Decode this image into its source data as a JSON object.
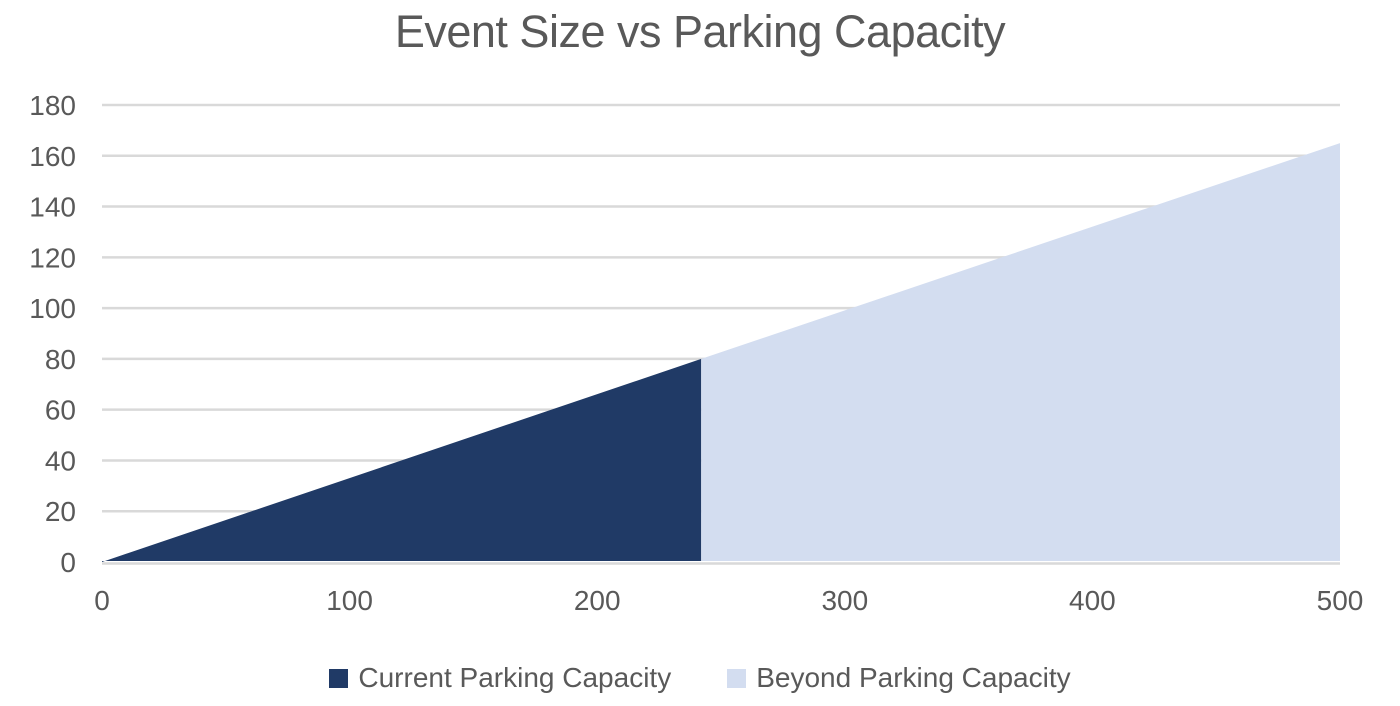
{
  "title": "Event Size vs Parking Capacity",
  "colors": {
    "current": "#203A66",
    "beyond": "#D3DDF0",
    "gridline": "#D9D9D9",
    "text": "#595959"
  },
  "legend": [
    {
      "label": "Current Parking Capacity",
      "color": "#203A66"
    },
    {
      "label": "Beyond Parking Capacity",
      "color": "#D3DDF0"
    }
  ],
  "chart_data": {
    "type": "area",
    "title": "Event Size vs Parking Capacity",
    "xlabel": "",
    "ylabel": "",
    "xlim": [
      0,
      500
    ],
    "ylim": [
      0,
      180
    ],
    "x_ticks": [
      0,
      100,
      200,
      300,
      400,
      500
    ],
    "y_ticks": [
      0,
      20,
      40,
      60,
      80,
      100,
      120,
      140,
      160,
      180
    ],
    "grid": "horizontal",
    "legend_position": "bottom",
    "series": [
      {
        "name": "Current Parking Capacity",
        "color": "#203A66",
        "points": [
          [
            0,
            0
          ],
          [
            242,
            80
          ]
        ]
      },
      {
        "name": "Beyond Parking Capacity",
        "color": "#D3DDF0",
        "points": [
          [
            242,
            80
          ],
          [
            500,
            165
          ]
        ]
      }
    ]
  }
}
